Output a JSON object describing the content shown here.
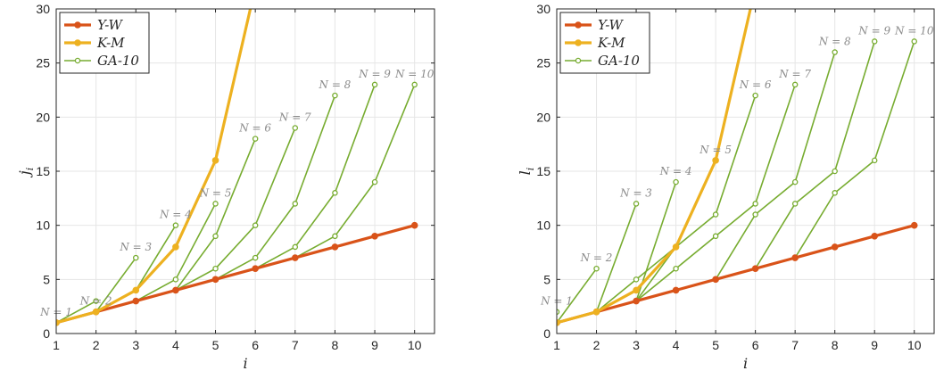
{
  "chart_data": [
    {
      "type": "line",
      "xlabel": "i",
      "ylabel": "j_i",
      "xlim": [
        1,
        10.5
      ],
      "ylim": [
        0,
        30
      ],
      "xticks": [
        1,
        2,
        3,
        4,
        5,
        6,
        7,
        8,
        9,
        10
      ],
      "yticks": [
        0,
        5,
        10,
        15,
        20,
        25,
        30
      ],
      "grid": true,
      "legend": {
        "placement": "top-left",
        "entries": [
          "Y-W",
          "K-M",
          "GA-10"
        ]
      },
      "series": [
        {
          "name": "Y-W",
          "color": "#d95319",
          "x": [
            1,
            2,
            3,
            4,
            5,
            6,
            7,
            8,
            9,
            10
          ],
          "y": [
            1,
            2,
            3,
            4,
            5,
            6,
            7,
            8,
            9,
            10
          ]
        },
        {
          "name": "K-M",
          "color": "#edb120",
          "x": [
            1,
            2,
            3,
            4,
            5,
            6
          ],
          "y": [
            1,
            2,
            4,
            8,
            16,
            32
          ]
        },
        {
          "name": "GA-10",
          "color": "#77ac30",
          "group": true,
          "lines": [
            {
              "label": "N = 1",
              "label_at": [
                1,
                1
              ],
              "x": [
                1
              ],
              "y": [
                1
              ]
            },
            {
              "label": "N = 2",
              "label_at": [
                2,
                2
              ],
              "x": [
                1,
                2
              ],
              "y": [
                1,
                3
              ]
            },
            {
              "label": "N = 3",
              "label_at": [
                3,
                7
              ],
              "x": [
                1,
                2,
                3
              ],
              "y": [
                1,
                2,
                7
              ]
            },
            {
              "label": "N = 4",
              "label_at": [
                4,
                10
              ],
              "x": [
                1,
                2,
                3,
                4
              ],
              "y": [
                1,
                2,
                4,
                10
              ]
            },
            {
              "label": "N = 5",
              "label_at": [
                5,
                12
              ],
              "x": [
                1,
                2,
                3,
                4,
                5
              ],
              "y": [
                1,
                2,
                3,
                5,
                12
              ]
            },
            {
              "label": "N = 6",
              "label_at": [
                6,
                18
              ],
              "x": [
                1,
                2,
                3,
                4,
                5,
                6
              ],
              "y": [
                1,
                2,
                3,
                4,
                9,
                18
              ]
            },
            {
              "label": "N = 7",
              "label_at": [
                7,
                19
              ],
              "x": [
                1,
                2,
                3,
                4,
                5,
                6,
                7
              ],
              "y": [
                1,
                2,
                3,
                4,
                6,
                10,
                19
              ]
            },
            {
              "label": "N = 8",
              "label_at": [
                8,
                22
              ],
              "x": [
                1,
                2,
                3,
                4,
                5,
                6,
                7,
                8
              ],
              "y": [
                1,
                2,
                3,
                4,
                5,
                7,
                12,
                22
              ]
            },
            {
              "label": "N = 9",
              "label_at": [
                9,
                23
              ],
              "x": [
                1,
                2,
                3,
                4,
                5,
                6,
                7,
                8,
                9
              ],
              "y": [
                1,
                2,
                3,
                4,
                5,
                6,
                8,
                13,
                23
              ]
            },
            {
              "label": "N = 10",
              "label_at": [
                10,
                23
              ],
              "x": [
                1,
                2,
                3,
                4,
                5,
                6,
                7,
                8,
                9,
                10
              ],
              "y": [
                1,
                2,
                3,
                4,
                5,
                6,
                7,
                9,
                14,
                23
              ]
            }
          ]
        }
      ]
    },
    {
      "type": "line",
      "xlabel": "i",
      "ylabel": "l_i",
      "xlim": [
        1,
        10.5
      ],
      "ylim": [
        0,
        30
      ],
      "xticks": [
        1,
        2,
        3,
        4,
        5,
        6,
        7,
        8,
        9,
        10
      ],
      "yticks": [
        0,
        5,
        10,
        15,
        20,
        25,
        30
      ],
      "grid": true,
      "legend": {
        "placement": "top-left",
        "entries": [
          "Y-W",
          "K-M",
          "GA-10"
        ]
      },
      "series": [
        {
          "name": "Y-W",
          "color": "#d95319",
          "x": [
            1,
            2,
            3,
            4,
            5,
            6,
            7,
            8,
            9,
            10
          ],
          "y": [
            1,
            2,
            3,
            4,
            5,
            6,
            7,
            8,
            9,
            10
          ]
        },
        {
          "name": "K-M",
          "color": "#edb120",
          "x": [
            1,
            2,
            3,
            4,
            5,
            6
          ],
          "y": [
            1,
            2,
            4,
            8,
            16,
            32
          ]
        },
        {
          "name": "GA-10",
          "color": "#77ac30",
          "group": true,
          "lines": [
            {
              "label": "N = 1",
              "label_at": [
                1,
                2
              ],
              "x": [
                1
              ],
              "y": [
                2
              ]
            },
            {
              "label": "N = 2",
              "label_at": [
                2,
                6
              ],
              "x": [
                1,
                2
              ],
              "y": [
                1,
                6
              ]
            },
            {
              "label": "N = 3",
              "label_at": [
                3,
                12
              ],
              "x": [
                1,
                2,
                3
              ],
              "y": [
                1,
                2,
                12
              ]
            },
            {
              "label": "N = 4",
              "label_at": [
                4,
                14
              ],
              "x": [
                1,
                2,
                3,
                4
              ],
              "y": [
                1,
                2,
                3,
                14
              ]
            },
            {
              "label": "N = 5",
              "label_at": [
                5,
                16
              ],
              "x": [
                1,
                2,
                3,
                4,
                5
              ],
              "y": [
                1,
                2,
                3,
                8,
                16
              ]
            },
            {
              "label": "N = 6",
              "label_at": [
                6,
                22
              ],
              "x": [
                1,
                2,
                3,
                4,
                5,
                6
              ],
              "y": [
                1,
                2,
                5,
                8,
                11,
                22
              ]
            },
            {
              "label": "N = 7",
              "label_at": [
                7,
                23
              ],
              "x": [
                1,
                2,
                3,
                4,
                5,
                6,
                7
              ],
              "y": [
                1,
                2,
                3,
                6,
                9,
                12,
                23
              ]
            },
            {
              "label": "N = 8",
              "label_at": [
                8,
                26
              ],
              "x": [
                1,
                2,
                3,
                4,
                5,
                6,
                7,
                8
              ],
              "y": [
                1,
                2,
                3,
                4,
                5,
                11,
                14,
                26
              ]
            },
            {
              "label": "N = 9",
              "label_at": [
                9,
                27
              ],
              "x": [
                1,
                2,
                3,
                4,
                5,
                6,
                7,
                8,
                9
              ],
              "y": [
                1,
                2,
                3,
                4,
                5,
                6,
                12,
                15,
                27
              ]
            },
            {
              "label": "N = 10",
              "label_at": [
                10,
                27
              ],
              "x": [
                1,
                2,
                3,
                4,
                5,
                6,
                7,
                8,
                9,
                10
              ],
              "y": [
                1,
                2,
                3,
                4,
                5,
                6,
                7,
                13,
                16,
                27
              ]
            }
          ]
        }
      ]
    }
  ]
}
